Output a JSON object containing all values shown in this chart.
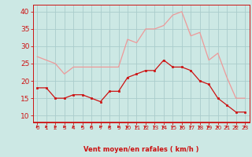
{
  "hours": [
    0,
    1,
    2,
    3,
    4,
    5,
    6,
    7,
    8,
    9,
    10,
    11,
    12,
    13,
    14,
    15,
    16,
    17,
    18,
    19,
    20,
    21,
    22,
    23
  ],
  "wind_avg": [
    18,
    18,
    15,
    15,
    16,
    16,
    15,
    14,
    17,
    17,
    21,
    22,
    23,
    23,
    26,
    24,
    24,
    23,
    20,
    19,
    15,
    13,
    11,
    11
  ],
  "wind_gust": [
    27,
    26,
    25,
    22,
    24,
    24,
    24,
    24,
    24,
    24,
    32,
    31,
    35,
    35,
    36,
    39,
    40,
    33,
    34,
    26,
    28,
    21,
    15,
    15
  ],
  "bg_color": "#cce8e4",
  "grid_color": "#aacccc",
  "line_avg_color": "#cc1111",
  "line_gust_color": "#ee9999",
  "marker_color": "#cc1111",
  "xlabel": "Vent moyen/en rafales ( km/h )",
  "xlabel_color": "#cc1111",
  "tick_color": "#cc1111",
  "ylim": [
    8,
    42
  ],
  "yticks": [
    10,
    15,
    20,
    25,
    30,
    35,
    40
  ],
  "arrow_color": "#cc1111"
}
